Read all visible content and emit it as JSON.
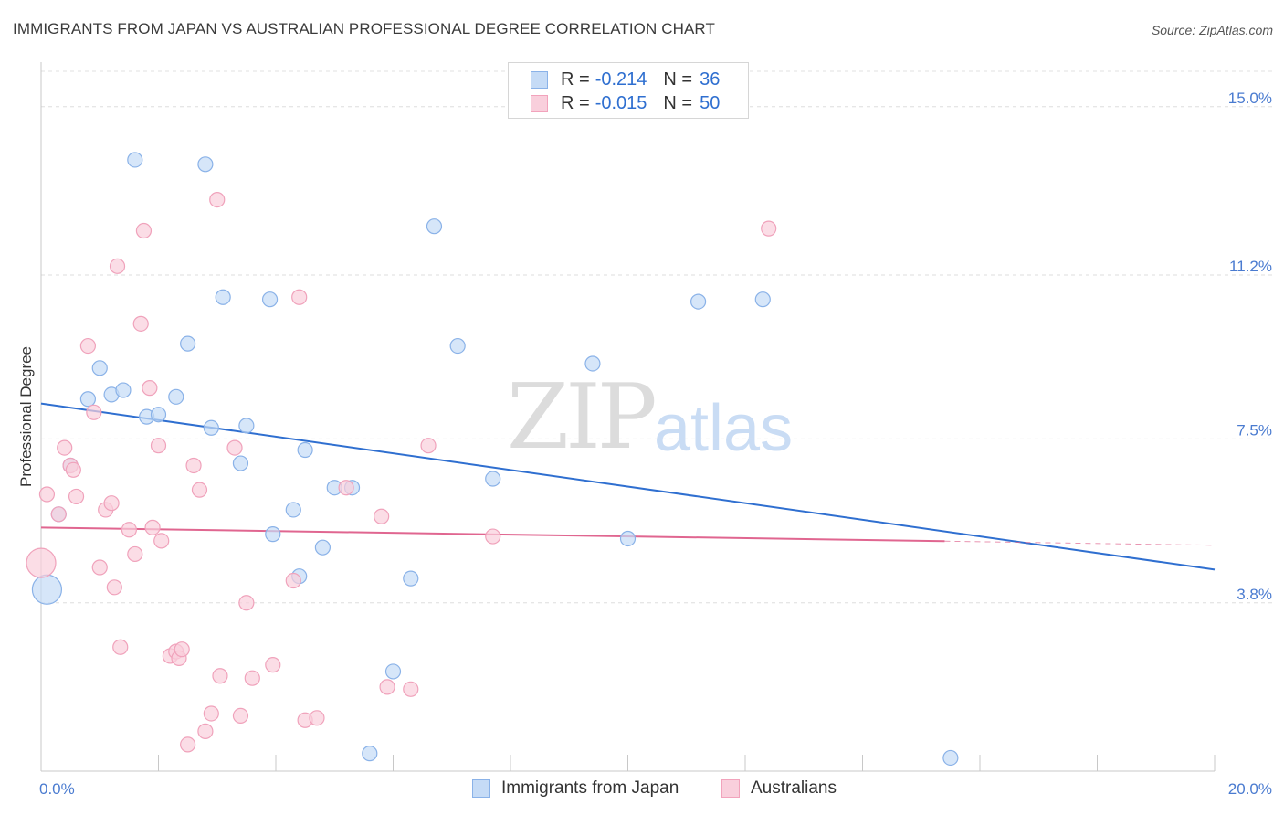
{
  "title": "IMMIGRANTS FROM JAPAN VS AUSTRALIAN PROFESSIONAL DEGREE CORRELATION CHART",
  "source": "Source: ZipAtlas.com",
  "watermark": {
    "zip": "ZIP",
    "atlas": "atlas"
  },
  "legend_top": {
    "rows": [
      {
        "r_label": "R =",
        "r_value": "-0.214",
        "n_label": "N =",
        "n_value": "36",
        "color": "#a8c8f0"
      },
      {
        "r_label": "R =",
        "r_value": "-0.015",
        "n_label": "N =",
        "n_value": "50",
        "color": "#f7b9ca"
      }
    ]
  },
  "legend_bottom": {
    "items": [
      {
        "label": "Immigrants from Japan",
        "color": "#a8c8f0"
      },
      {
        "label": "Australians",
        "color": "#f7b9ca"
      }
    ]
  },
  "chart_data": {
    "type": "scatter",
    "title": "IMMIGRANTS FROM JAPAN VS AUSTRALIAN PROFESSIONAL DEGREE CORRELATION CHART",
    "xlabel": "",
    "ylabel": "Professional Degree",
    "xlim": [
      0,
      20
    ],
    "ylim": [
      0,
      15.8
    ],
    "x_tick_labels": [
      "0.0%",
      "20.0%"
    ],
    "y_ticks": [
      3.8,
      7.5,
      11.2,
      15.0
    ],
    "y_tick_labels": [
      "3.8%",
      "7.5%",
      "11.2%",
      "15.0%"
    ],
    "grid": true,
    "legend_position": "top-center",
    "colors": {
      "japan": "#5b93dc",
      "japan_fill": "#c5dbf6",
      "aus": "#e87aa0",
      "aus_fill": "#f9cfdc",
      "japan_line": "#2f6fd0",
      "aus_line": "#e06690"
    },
    "series": [
      {
        "name": "Immigrants from Japan",
        "trend": {
          "x": [
            0,
            20
          ],
          "y": [
            8.3,
            4.55
          ],
          "solid_to": 20
        },
        "points": [
          {
            "x": 0.1,
            "y": 4.1,
            "big": true
          },
          {
            "x": 0.3,
            "y": 5.8
          },
          {
            "x": 0.5,
            "y": 6.9
          },
          {
            "x": 0.8,
            "y": 8.4
          },
          {
            "x": 1.0,
            "y": 9.1
          },
          {
            "x": 1.2,
            "y": 8.5
          },
          {
            "x": 1.4,
            "y": 8.6
          },
          {
            "x": 1.6,
            "y": 13.8
          },
          {
            "x": 1.8,
            "y": 8.0
          },
          {
            "x": 2.0,
            "y": 8.05
          },
          {
            "x": 2.3,
            "y": 8.45
          },
          {
            "x": 2.5,
            "y": 9.65
          },
          {
            "x": 2.8,
            "y": 13.7
          },
          {
            "x": 2.9,
            "y": 7.75
          },
          {
            "x": 3.1,
            "y": 10.7
          },
          {
            "x": 3.4,
            "y": 6.95
          },
          {
            "x": 3.5,
            "y": 7.8
          },
          {
            "x": 3.9,
            "y": 10.65
          },
          {
            "x": 3.95,
            "y": 5.35
          },
          {
            "x": 4.3,
            "y": 5.9
          },
          {
            "x": 4.4,
            "y": 4.4
          },
          {
            "x": 4.5,
            "y": 7.25
          },
          {
            "x": 4.8,
            "y": 5.05
          },
          {
            "x": 5.0,
            "y": 6.4
          },
          {
            "x": 5.3,
            "y": 6.4
          },
          {
            "x": 5.6,
            "y": 0.4
          },
          {
            "x": 6.0,
            "y": 2.25
          },
          {
            "x": 6.3,
            "y": 4.35
          },
          {
            "x": 6.7,
            "y": 12.3
          },
          {
            "x": 7.1,
            "y": 9.6
          },
          {
            "x": 7.7,
            "y": 6.6
          },
          {
            "x": 9.4,
            "y": 9.2
          },
          {
            "x": 10.0,
            "y": 5.25
          },
          {
            "x": 11.2,
            "y": 10.6
          },
          {
            "x": 12.3,
            "y": 10.65
          },
          {
            "x": 15.5,
            "y": 0.3
          }
        ]
      },
      {
        "name": "Australians",
        "trend": {
          "x": [
            0,
            20
          ],
          "y": [
            5.5,
            5.1
          ],
          "solid_to": 15.4
        },
        "points": [
          {
            "x": 0.0,
            "y": 4.7,
            "big": true
          },
          {
            "x": 0.1,
            "y": 6.25
          },
          {
            "x": 0.3,
            "y": 5.8
          },
          {
            "x": 0.4,
            "y": 7.3
          },
          {
            "x": 0.5,
            "y": 6.9
          },
          {
            "x": 0.55,
            "y": 6.8
          },
          {
            "x": 0.6,
            "y": 6.2
          },
          {
            "x": 0.8,
            "y": 9.6
          },
          {
            "x": 0.9,
            "y": 8.1
          },
          {
            "x": 1.0,
            "y": 4.6
          },
          {
            "x": 1.1,
            "y": 5.9
          },
          {
            "x": 1.2,
            "y": 6.05
          },
          {
            "x": 1.25,
            "y": 4.15
          },
          {
            "x": 1.3,
            "y": 11.4
          },
          {
            "x": 1.35,
            "y": 2.8
          },
          {
            "x": 1.5,
            "y": 5.45
          },
          {
            "x": 1.6,
            "y": 4.9
          },
          {
            "x": 1.7,
            "y": 10.1
          },
          {
            "x": 1.75,
            "y": 12.2
          },
          {
            "x": 1.85,
            "y": 8.65
          },
          {
            "x": 1.9,
            "y": 5.5
          },
          {
            "x": 2.0,
            "y": 7.35
          },
          {
            "x": 2.05,
            "y": 5.2
          },
          {
            "x": 2.2,
            "y": 2.6
          },
          {
            "x": 2.3,
            "y": 2.7
          },
          {
            "x": 2.35,
            "y": 2.55
          },
          {
            "x": 2.4,
            "y": 2.75
          },
          {
            "x": 2.5,
            "y": 0.6
          },
          {
            "x": 2.6,
            "y": 6.9
          },
          {
            "x": 2.7,
            "y": 6.35
          },
          {
            "x": 2.8,
            "y": 0.9
          },
          {
            "x": 2.9,
            "y": 1.3
          },
          {
            "x": 3.0,
            "y": 12.9
          },
          {
            "x": 3.05,
            "y": 2.15
          },
          {
            "x": 3.3,
            "y": 7.3
          },
          {
            "x": 3.4,
            "y": 1.25
          },
          {
            "x": 3.5,
            "y": 3.8
          },
          {
            "x": 3.6,
            "y": 2.1
          },
          {
            "x": 3.95,
            "y": 2.4
          },
          {
            "x": 4.3,
            "y": 4.3
          },
          {
            "x": 4.4,
            "y": 10.7
          },
          {
            "x": 4.5,
            "y": 1.15
          },
          {
            "x": 4.7,
            "y": 1.2
          },
          {
            "x": 5.2,
            "y": 6.4
          },
          {
            "x": 5.8,
            "y": 5.75
          },
          {
            "x": 5.9,
            "y": 1.9
          },
          {
            "x": 6.3,
            "y": 1.85
          },
          {
            "x": 6.6,
            "y": 7.35
          },
          {
            "x": 7.7,
            "y": 5.3
          },
          {
            "x": 12.4,
            "y": 12.25
          }
        ]
      }
    ]
  }
}
